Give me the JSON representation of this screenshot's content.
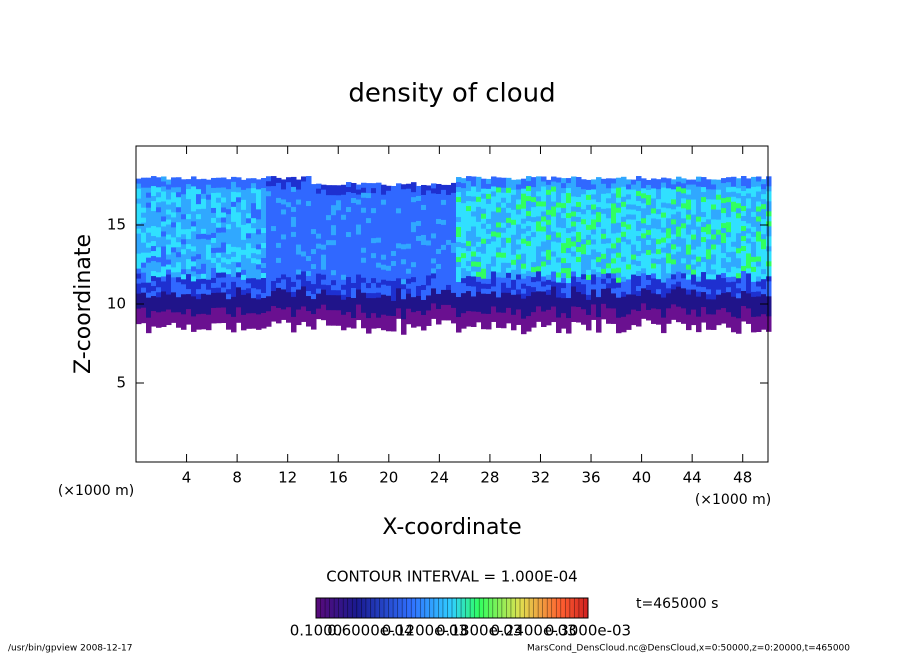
{
  "chart_data": {
    "type": "contour",
    "title": "density of cloud",
    "x_label": "X-coordinate",
    "y_label": "Z-coordinate",
    "x_unit": "(×1000 m)",
    "y_unit": "(×1000 m)",
    "xlim": [
      0,
      50
    ],
    "ylim": [
      0,
      20
    ],
    "xticks": [
      4,
      8,
      12,
      16,
      20,
      24,
      28,
      32,
      36,
      40,
      44,
      48
    ],
    "yticks": [
      5,
      10,
      15
    ],
    "contour_interval": "CONTOUR INTERVAL = 1.000E-04",
    "time_label": "t=465000 s",
    "colorbar_labels": [
      "0.1000",
      "0.6000e-04",
      "0.1200e-03",
      "0.1800e-03",
      "0.2400e-03",
      "0.3000e-03"
    ],
    "footer_left": "/usr/bin/gpview  2008-12-17",
    "footer_right": "MarsCond_DensCloud.nc@DensCloud,x=0:50000,z=0:20000,t=465000"
  }
}
